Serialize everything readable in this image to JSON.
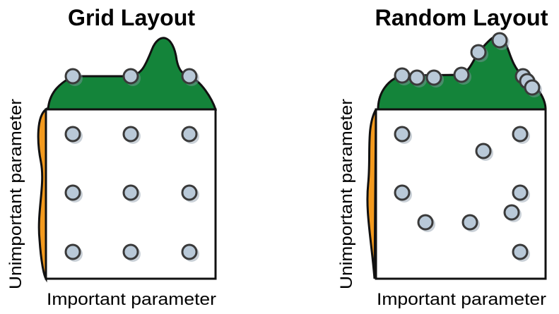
{
  "panels": [
    {
      "title": "Grid Layout",
      "x_label": "Important parameter",
      "y_label": "Unimportant parameter"
    },
    {
      "title": "Random Layout",
      "x_label": "Important parameter",
      "y_label": "Unimportant parameter"
    }
  ]
}
